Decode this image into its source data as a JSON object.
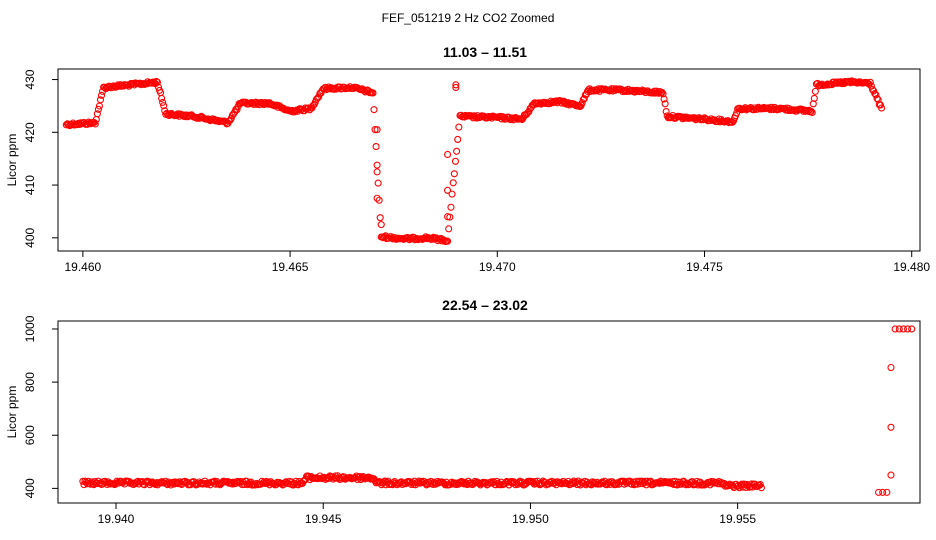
{
  "figure": {
    "title": "FEF_051219  2 Hz CO2 Zoomed"
  },
  "chart_data": [
    {
      "type": "scatter",
      "title": "11.03 – 11.51",
      "xlabel": "",
      "ylabel": "Licor ppm",
      "xlim": [
        19.4594,
        19.4802
      ],
      "ylim": [
        397.5,
        432
      ],
      "xticks": [
        19.46,
        19.465,
        19.47,
        19.475,
        19.48
      ],
      "xtick_labels": [
        "19.460",
        "19.465",
        "19.470",
        "19.475",
        "19.480"
      ],
      "yticks": [
        400,
        410,
        420,
        430
      ],
      "ytick_labels": [
        "400",
        "410",
        "420",
        "430"
      ],
      "grid": false,
      "marker_color": "#ff0000",
      "marker": "open-circle",
      "trace": [
        [
          19.4596,
          421.5
        ],
        [
          19.4603,
          421.8
        ],
        [
          19.4605,
          428.5
        ],
        [
          19.4618,
          429.5
        ],
        [
          19.462,
          423.5
        ],
        [
          19.4627,
          423.0
        ],
        [
          19.4635,
          421.8
        ],
        [
          19.4638,
          425.5
        ],
        [
          19.4645,
          425.5
        ],
        [
          19.465,
          424.0
        ],
        [
          19.4655,
          424.5
        ],
        [
          19.4658,
          428.3
        ],
        [
          19.4665,
          428.5
        ],
        [
          19.467,
          427.5
        ],
        [
          19.4672,
          400.2
        ],
        [
          19.4678,
          399.8
        ],
        [
          19.4683,
          400.0
        ],
        [
          19.4688,
          399.5
        ],
        [
          19.4691,
          423.0
        ],
        [
          19.47,
          422.8
        ],
        [
          19.4706,
          422.5
        ],
        [
          19.4709,
          425.5
        ],
        [
          19.4715,
          425.8
        ],
        [
          19.472,
          425.0
        ],
        [
          19.4722,
          428.0
        ],
        [
          19.473,
          428.0
        ],
        [
          19.474,
          427.5
        ],
        [
          19.4741,
          423.0
        ],
        [
          19.475,
          422.5
        ],
        [
          19.4757,
          422.0
        ],
        [
          19.4758,
          424.5
        ],
        [
          19.4768,
          424.5
        ],
        [
          19.4776,
          424.0
        ],
        [
          19.4777,
          429.0
        ],
        [
          19.4785,
          429.5
        ],
        [
          19.479,
          429.3
        ],
        [
          19.4793,
          424.0
        ]
      ],
      "excursions": [
        [
          19.4671,
          420.5
        ],
        [
          19.4671,
          412.5
        ],
        [
          19.4671,
          407.5
        ],
        [
          19.4672,
          402.5
        ],
        [
          19.4688,
          404.0
        ],
        [
          19.4688,
          409.0
        ],
        [
          19.4688,
          415.8
        ],
        [
          19.469,
          428.5
        ],
        [
          19.469,
          429.0
        ]
      ]
    },
    {
      "type": "scatter",
      "title": "22.54 – 23.02",
      "xlabel": "",
      "ylabel": "Licor ppm",
      "xlim": [
        19.9386,
        19.9594
      ],
      "ylim": [
        345,
        1030
      ],
      "xticks": [
        19.94,
        19.945,
        19.95,
        19.955
      ],
      "xtick_labels": [
        "19.940",
        "19.945",
        "19.950",
        "19.955"
      ],
      "yticks": [
        400,
        600,
        800,
        1000
      ],
      "ytick_labels": [
        "400",
        "600",
        "800",
        "1000"
      ],
      "grid": false,
      "marker_color": "#ff0000",
      "marker": "open-circle",
      "trace": [
        [
          19.9392,
          420
        ],
        [
          19.9445,
          420
        ],
        [
          19.9446,
          440
        ],
        [
          19.9462,
          440
        ],
        [
          19.9463,
          420
        ],
        [
          19.9546,
          420
        ],
        [
          19.9547,
          410
        ],
        [
          19.9556,
          410
        ]
      ],
      "excursions": [
        [
          19.9584,
          385
        ],
        [
          19.9585,
          385
        ],
        [
          19.9586,
          385
        ],
        [
          19.9587,
          450
        ],
        [
          19.9587,
          630
        ],
        [
          19.9587,
          855
        ],
        [
          19.9588,
          1000
        ],
        [
          19.9589,
          1000
        ],
        [
          19.959,
          1000
        ],
        [
          19.9591,
          1000
        ],
        [
          19.9592,
          1000
        ]
      ]
    }
  ]
}
